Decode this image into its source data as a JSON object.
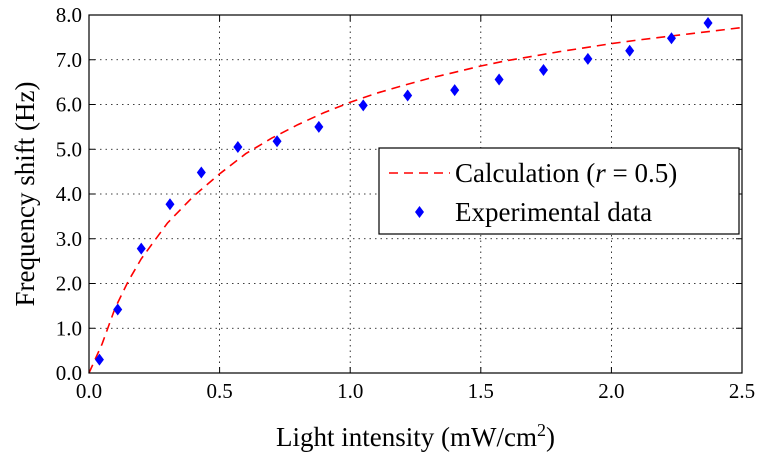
{
  "chart_data": {
    "type": "scatter",
    "title": "",
    "xlabel": "Light intensity (mW/cm",
    "xlabel_superscript": "2",
    "xlabel_suffix": ")",
    "ylabel": "Frequency shift (Hz)",
    "xlim": [
      0,
      2.5
    ],
    "ylim": [
      0,
      8
    ],
    "xticks": [
      0,
      0.5,
      1.0,
      1.5,
      2.0,
      2.5
    ],
    "xtick_labels": [
      "0.0",
      "0.5",
      "1.0",
      "1.5",
      "2.0",
      "2.5"
    ],
    "yticks": [
      0,
      1,
      2,
      3,
      4,
      5,
      6,
      7,
      8
    ],
    "ytick_labels": [
      "0.0",
      "1.0",
      "2.0",
      "3.0",
      "4.0",
      "5.0",
      "6.0",
      "7.0",
      "8.0"
    ],
    "grid": true,
    "legend_position": "center-right",
    "series": [
      {
        "name": "Calculation (r = 0.5)",
        "legend_prefix": "Calculation (",
        "legend_italic": "r",
        "legend_suffix": " = 0.5)",
        "style": "dashed-line",
        "color": "#ff0000",
        "x": [
          0,
          0.05,
          0.1,
          0.15,
          0.2,
          0.3,
          0.4,
          0.5,
          0.6,
          0.7,
          0.8,
          0.9,
          1.0,
          1.1,
          1.2,
          1.3,
          1.4,
          1.5,
          1.6,
          1.7,
          1.8,
          1.9,
          2.0,
          2.1,
          2.2,
          2.3,
          2.4,
          2.5
        ],
        "y": [
          0.0,
          0.65,
          1.45,
          2.05,
          2.55,
          3.35,
          3.95,
          4.45,
          4.9,
          5.25,
          5.55,
          5.82,
          6.05,
          6.25,
          6.42,
          6.58,
          6.72,
          6.86,
          6.98,
          7.08,
          7.18,
          7.27,
          7.36,
          7.44,
          7.51,
          7.58,
          7.65,
          7.72
        ]
      },
      {
        "name": "Experimental data",
        "style": "diamond-markers",
        "color": "#0000ff",
        "x": [
          0.04,
          0.11,
          0.2,
          0.31,
          0.43,
          0.57,
          0.72,
          0.88,
          1.05,
          1.22,
          1.4,
          1.57,
          1.74,
          1.91,
          2.07,
          2.23,
          2.37
        ],
        "y": [
          0.3,
          1.42,
          2.78,
          3.77,
          4.48,
          5.05,
          5.18,
          5.5,
          5.98,
          6.2,
          6.32,
          6.56,
          6.77,
          7.02,
          7.2,
          7.48,
          7.82
        ]
      }
    ]
  }
}
